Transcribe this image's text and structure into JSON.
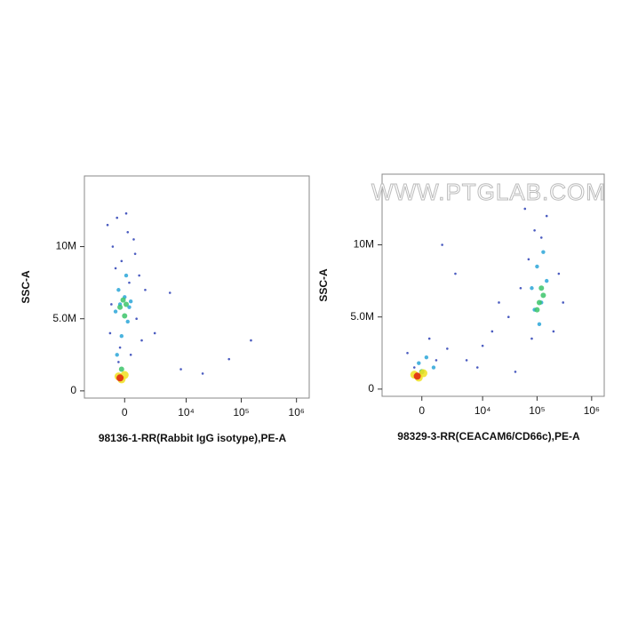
{
  "chart_data": [
    {
      "type": "scatter",
      "xlabel": "98136-1-RR(Rabbit IgG isotype),PE-A",
      "ylabel": "SSC-A",
      "xscale": "biexponential",
      "xlim": [
        -4000,
        1700000
      ],
      "ylim": [
        -500000,
        14900000
      ],
      "xticks": [
        0,
        {
          "value": 10000,
          "label": "10⁴"
        },
        {
          "value": 100000,
          "label": "10⁵"
        },
        {
          "value": 1000000,
          "label": "10⁶"
        }
      ],
      "yticks": [
        0,
        {
          "value": 5000000,
          "label": "5.0M"
        },
        {
          "value": 10000000,
          "label": "10M"
        }
      ],
      "series": [
        {
          "color": "#2b3fb5",
          "x": [
            -1200,
            -800,
            -500,
            -200,
            200,
            600,
            1000,
            1500,
            -1000,
            -300,
            400,
            800,
            -600,
            100,
            1200,
            -900,
            300,
            2500,
            5000,
            20000,
            150000,
            60000,
            8000,
            -400,
            700
          ],
          "values": [
            11500000,
            10000000,
            12000000,
            9000000,
            11000000,
            10500000,
            8000000,
            7000000,
            4000000,
            3000000,
            2500000,
            5000000,
            8500000,
            12300000,
            3500000,
            6000000,
            7500000,
            4000000,
            6800000,
            1200000,
            3500000,
            2200000,
            1500000,
            2000000,
            9500000
          ]
        },
        {
          "color": "#2aa6d8",
          "x": [
            -600,
            -300,
            0,
            300,
            -400,
            200,
            -200,
            100,
            -500,
            400
          ],
          "values": [
            5500000,
            6000000,
            6500000,
            5800000,
            7000000,
            4800000,
            3800000,
            8000000,
            2500000,
            6200000
          ]
        },
        {
          "color": "#3cc46a",
          "x": [
            -300,
            -100,
            100,
            -200,
            0
          ],
          "values": [
            5800000,
            6300000,
            6000000,
            1500000,
            5200000
          ]
        },
        {
          "color": "#f0e020",
          "x": [
            -400,
            -200,
            0
          ],
          "values": [
            1000000,
            800000,
            1100000
          ]
        },
        {
          "color": "#e02010",
          "x": [
            -300
          ],
          "values": [
            900000
          ]
        }
      ]
    },
    {
      "type": "scatter",
      "xlabel": "98329-3-RR(CEACAM6/CD66c),PE-A",
      "ylabel": "SSC-A",
      "xscale": "biexponential",
      "xlim": [
        -4000,
        1700000
      ],
      "ylim": [
        -500000,
        14900000
      ],
      "xticks": [
        0,
        {
          "value": 10000,
          "label": "10⁴"
        },
        {
          "value": 100000,
          "label": "10⁵"
        },
        {
          "value": 1000000,
          "label": "10⁶"
        }
      ],
      "yticks": [
        0,
        {
          "value": 5000000,
          "label": "5.0M"
        },
        {
          "value": 10000000,
          "label": "10M"
        }
      ],
      "watermark": "WWW.PTGLAB.COM",
      "series": [
        {
          "color": "#2b3fb5",
          "x": [
            -1000,
            500,
            2000,
            5000,
            8000,
            15000,
            30000,
            50000,
            70000,
            90000,
            150000,
            250000,
            3000,
            1500,
            40000,
            20000,
            80000,
            200000,
            120000,
            60000,
            -500,
            1000,
            10000,
            300000
          ],
          "values": [
            2500000,
            3500000,
            2800000,
            2000000,
            1500000,
            4000000,
            5000000,
            7000000,
            9000000,
            11000000,
            12000000,
            8000000,
            8000000,
            10000000,
            1200000,
            6000000,
            3500000,
            4000000,
            10500000,
            12500000,
            1500000,
            2000000,
            3000000,
            6000000
          ]
        },
        {
          "color": "#2aa6d8",
          "x": [
            80000,
            100000,
            120000,
            150000,
            110000,
            90000,
            130000,
            -200,
            300,
            800
          ],
          "values": [
            7000000,
            8500000,
            6000000,
            7500000,
            4500000,
            5500000,
            9500000,
            1800000,
            2200000,
            1500000
          ]
        },
        {
          "color": "#3cc46a",
          "x": [
            110000,
            120000,
            100000,
            130000,
            0
          ],
          "values": [
            6000000,
            7000000,
            5500000,
            6500000,
            1200000
          ]
        },
        {
          "color": "#f0e020",
          "x": [
            -500,
            -200,
            100
          ],
          "values": [
            1000000,
            800000,
            1100000
          ]
        },
        {
          "color": "#e02010",
          "x": [
            -300
          ],
          "values": [
            900000
          ]
        }
      ]
    }
  ]
}
